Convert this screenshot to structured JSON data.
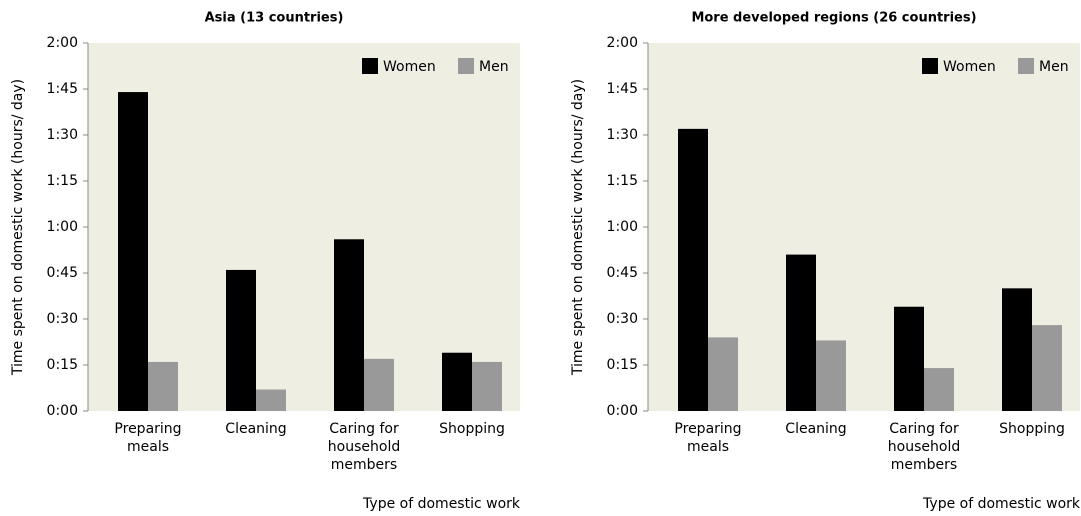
{
  "chart_data": [
    {
      "type": "bar",
      "title": "Asia (13 countries)",
      "y_label": "Time spent on domestic work (hours/ day)",
      "x_label": "Type of domestic work",
      "categories": [
        "Preparing meals",
        "Cleaning",
        "Caring for household members",
        "Shopping"
      ],
      "series": [
        {
          "name": "Women",
          "color": "#000000",
          "values": [
            104,
            46,
            56,
            19
          ]
        },
        {
          "name": "Men",
          "color": "#999999",
          "values": [
            16,
            7,
            17,
            16
          ]
        }
      ],
      "ylim": [
        0,
        120
      ],
      "yticks": [
        {
          "value": 0,
          "label": "0:00"
        },
        {
          "value": 15,
          "label": "0:15"
        },
        {
          "value": 30,
          "label": "0:30"
        },
        {
          "value": 45,
          "label": "0:45"
        },
        {
          "value": 60,
          "label": "1:00"
        },
        {
          "value": 75,
          "label": "1:15"
        },
        {
          "value": 90,
          "label": "1:30"
        },
        {
          "value": 105,
          "label": "1:45"
        },
        {
          "value": 120,
          "label": "2:00"
        }
      ],
      "legend": "top-right"
    },
    {
      "type": "bar",
      "title": "More developed regions (26 countries)",
      "y_label": "Time spent on domestic work (hours/ day)",
      "x_label": "Type of domestic work",
      "categories": [
        "Preparing meals",
        "Cleaning",
        "Caring for household members",
        "Shopping"
      ],
      "series": [
        {
          "name": "Women",
          "color": "#000000",
          "values": [
            92,
            51,
            34,
            40
          ]
        },
        {
          "name": "Men",
          "color": "#999999",
          "values": [
            24,
            23,
            14,
            28
          ]
        }
      ],
      "ylim": [
        0,
        120
      ],
      "yticks": [
        {
          "value": 0,
          "label": "0:00"
        },
        {
          "value": 15,
          "label": "0:15"
        },
        {
          "value": 30,
          "label": "0:30"
        },
        {
          "value": 45,
          "label": "0:45"
        },
        {
          "value": 60,
          "label": "1:00"
        },
        {
          "value": 75,
          "label": "1:15"
        },
        {
          "value": 90,
          "label": "1:30"
        },
        {
          "value": 105,
          "label": "1:45"
        },
        {
          "value": 120,
          "label": "2:00"
        }
      ],
      "legend": "top-right"
    }
  ]
}
